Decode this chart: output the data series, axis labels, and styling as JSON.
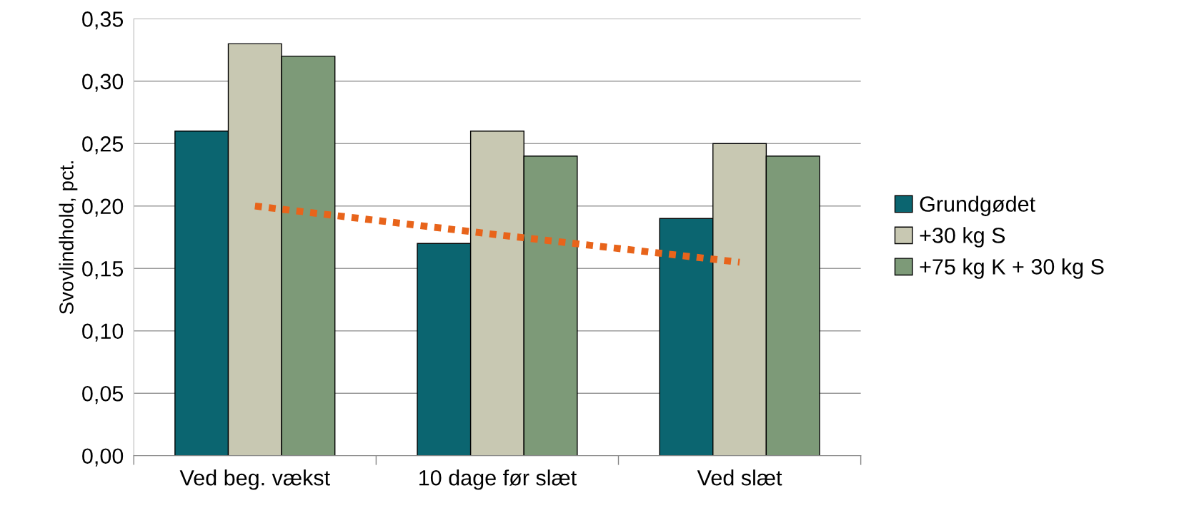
{
  "chart_data": {
    "type": "bar",
    "ylabel": "Svovlindhold, pct.",
    "categories": [
      "Ved beg. vækst",
      "10 dage før slæt",
      "Ved slæt"
    ],
    "series": [
      {
        "name": "Grundgødet",
        "color": "#0b6570",
        "values": [
          0.26,
          0.17,
          0.19
        ]
      },
      {
        "name": "+30 kg S",
        "color": "#c8c8b2",
        "values": [
          0.33,
          0.26,
          0.25
        ]
      },
      {
        "name": "+75 kg K + 30 kg S",
        "color": "#7d9a78",
        "values": [
          0.32,
          0.24,
          0.24
        ]
      },
      {
        "type": "line",
        "color": "#e8641b",
        "line_style": "dotted",
        "values": [
          0.2,
          0.177,
          0.155
        ]
      }
    ],
    "ylim": [
      0,
      0.35
    ],
    "yticks": [
      {
        "value": 0,
        "label": "0,00"
      },
      {
        "value": 0.05,
        "label": "0,05"
      },
      {
        "value": 0.1,
        "label": "0,10"
      },
      {
        "value": 0.15,
        "label": "0,15"
      },
      {
        "value": 0.2,
        "label": "0,20"
      },
      {
        "value": 0.25,
        "label": "0,25"
      },
      {
        "value": 0.3,
        "label": "0,30"
      },
      {
        "value": 0.35,
        "label": "0,35"
      }
    ],
    "grid": "y",
    "legend": "right"
  }
}
